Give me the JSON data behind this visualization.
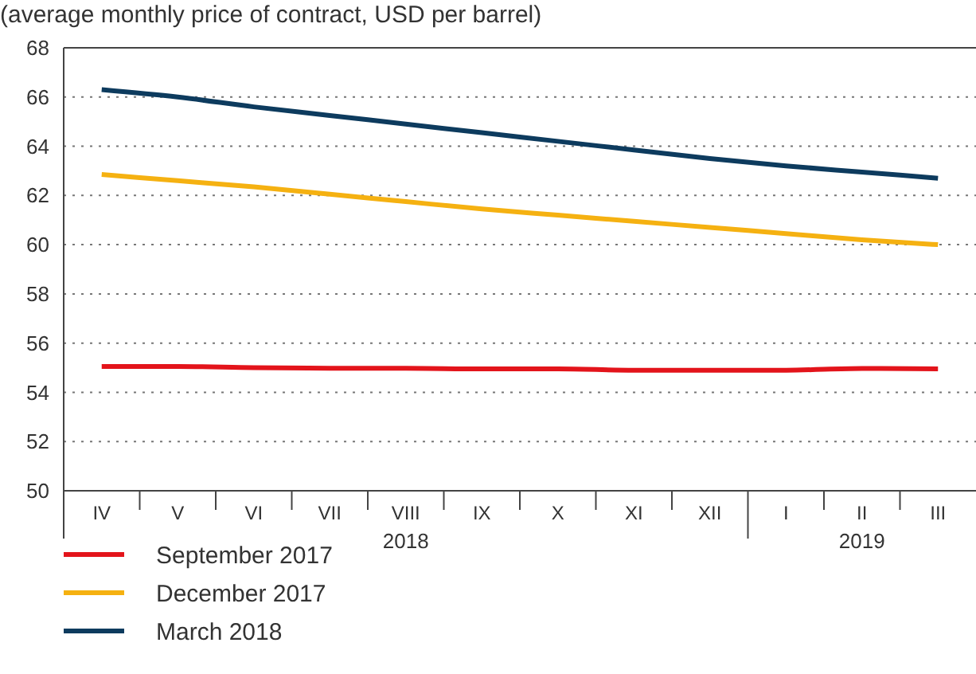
{
  "chart_data": {
    "type": "line",
    "title": "(average monthly price of contract, USD per barrel)",
    "categories": [
      "IV",
      "V",
      "VI",
      "VII",
      "VIII",
      "IX",
      "X",
      "XI",
      "XII",
      "I",
      "II",
      "III"
    ],
    "annotations": [
      "2018",
      "2019"
    ],
    "ylim": [
      50,
      68
    ],
    "yticks": [
      50,
      52,
      54,
      56,
      58,
      60,
      62,
      64,
      66,
      68
    ],
    "grid": "y",
    "legend": "bottom",
    "marker": "none",
    "line_style": "solid",
    "series": [
      {
        "name": "September 2017",
        "color": "#e3141b",
        "values": [
          55.05,
          55.05,
          55.0,
          54.98,
          54.98,
          54.95,
          54.95,
          54.9,
          54.9,
          54.9,
          54.97,
          54.95
        ]
      },
      {
        "name": "December 2017",
        "color": "#f5b111",
        "values": [
          62.85,
          62.6,
          62.35,
          62.05,
          61.75,
          61.45,
          61.2,
          60.95,
          60.7,
          60.45,
          60.2,
          60.0
        ]
      },
      {
        "name": "March 2018",
        "color": "#0d3b5e",
        "values": [
          66.3,
          66.0,
          65.6,
          65.25,
          64.9,
          64.55,
          64.2,
          63.85,
          63.5,
          63.2,
          62.95,
          62.7
        ]
      }
    ]
  }
}
